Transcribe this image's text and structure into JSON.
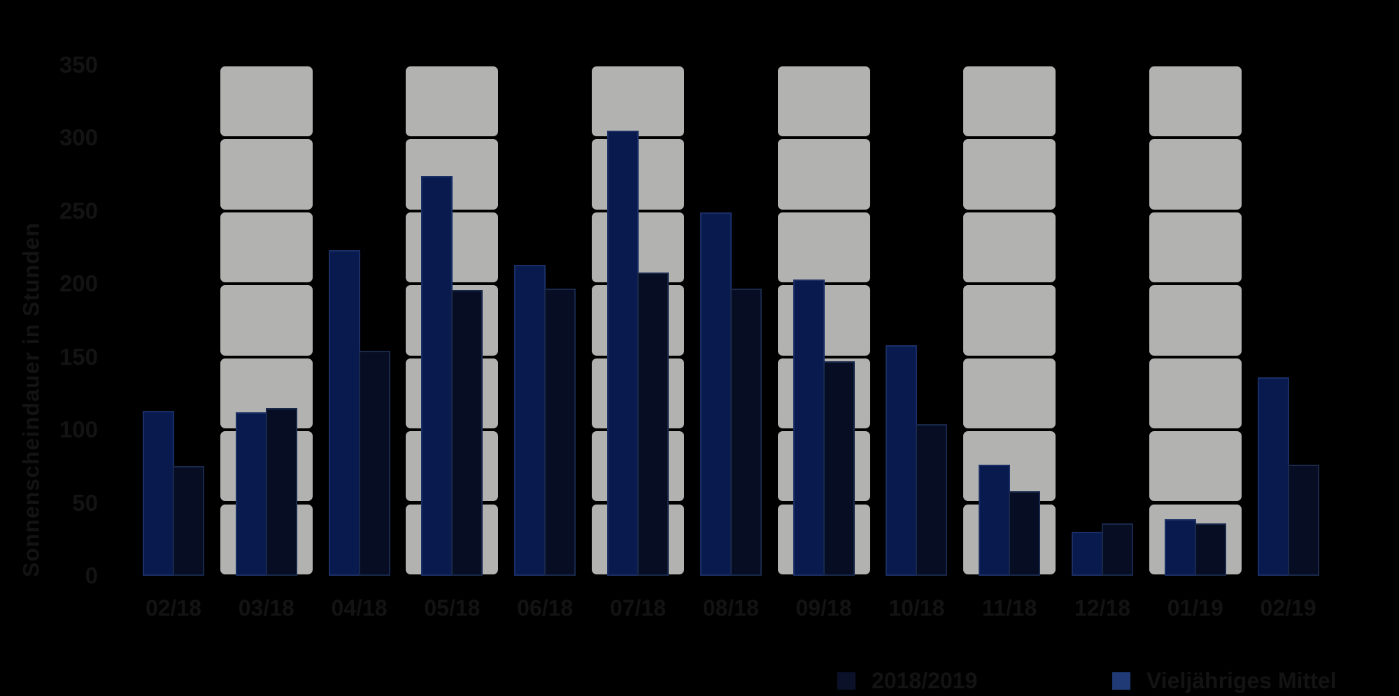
{
  "page": {
    "background": "#000000",
    "text_color": "#131313"
  },
  "chart_data": {
    "type": "bar",
    "title": "",
    "xlabel": "",
    "ylabel": "Sonnenscheindauer in Stunden",
    "categories": [
      "02/18",
      "03/18",
      "04/18",
      "05/18",
      "06/18",
      "07/18",
      "08/18",
      "09/18",
      "10/18",
      "11/18",
      "12/18",
      "01/19",
      "02/19"
    ],
    "series": [
      {
        "name": "2018/2019",
        "bar_position": "right",
        "legend_color": "#0a1128",
        "bar_color": "#070e24",
        "values": [
          75,
          115,
          154,
          196,
          197,
          208,
          197,
          147,
          104,
          58,
          36,
          36,
          76
        ]
      },
      {
        "name": "Vieljähriges Mittel",
        "bar_position": "left",
        "legend_color": "#1f3a74",
        "bar_color": "#081a4e",
        "values": [
          113,
          112,
          223,
          274,
          213,
          305,
          249,
          203,
          158,
          76,
          30,
          39,
          136
        ]
      }
    ],
    "ylim": [
      0,
      350
    ],
    "y_ticks": [
      0,
      50,
      100,
      150,
      200,
      250,
      300,
      350
    ],
    "grid": "horizontal-every-50-black",
    "legend_position": "bottom-right",
    "background_columns": {
      "color": "#b2b2b0",
      "categories": [
        "03/18",
        "05/18",
        "07/18",
        "09/18",
        "11/18",
        "01/19"
      ],
      "from": 0,
      "to": 350,
      "segment": 50
    }
  }
}
